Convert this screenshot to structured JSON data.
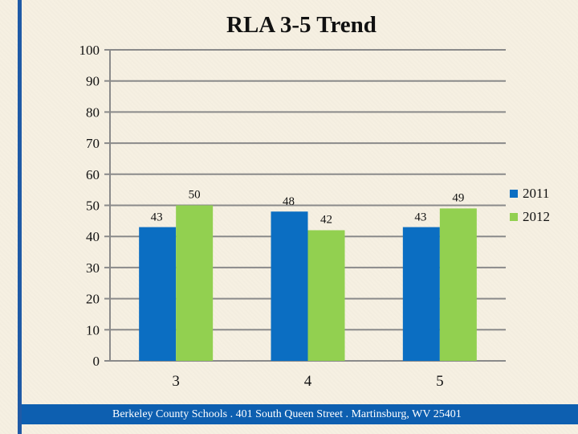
{
  "chart_data": {
    "type": "bar",
    "title": "RLA 3-5 Trend",
    "categories": [
      "3",
      "4",
      "5"
    ],
    "series": [
      {
        "name": "2011",
        "values": [
          43,
          48,
          43
        ],
        "color": "#0b6ec2"
      },
      {
        "name": "2012",
        "values": [
          50,
          42,
          49
        ],
        "color": "#92d050"
      }
    ],
    "y_ticks": [
      0,
      10,
      20,
      30,
      40,
      50,
      60,
      70,
      80,
      90,
      100
    ],
    "ylim": [
      0,
      100
    ],
    "xlabel": "",
    "ylabel": "",
    "grid": true,
    "legend_position": "right"
  },
  "footer": {
    "text": "Berkeley County Schools . 401 South Queen Street . Martinsburg, WV  25401",
    "color": "#0d5fb0"
  }
}
